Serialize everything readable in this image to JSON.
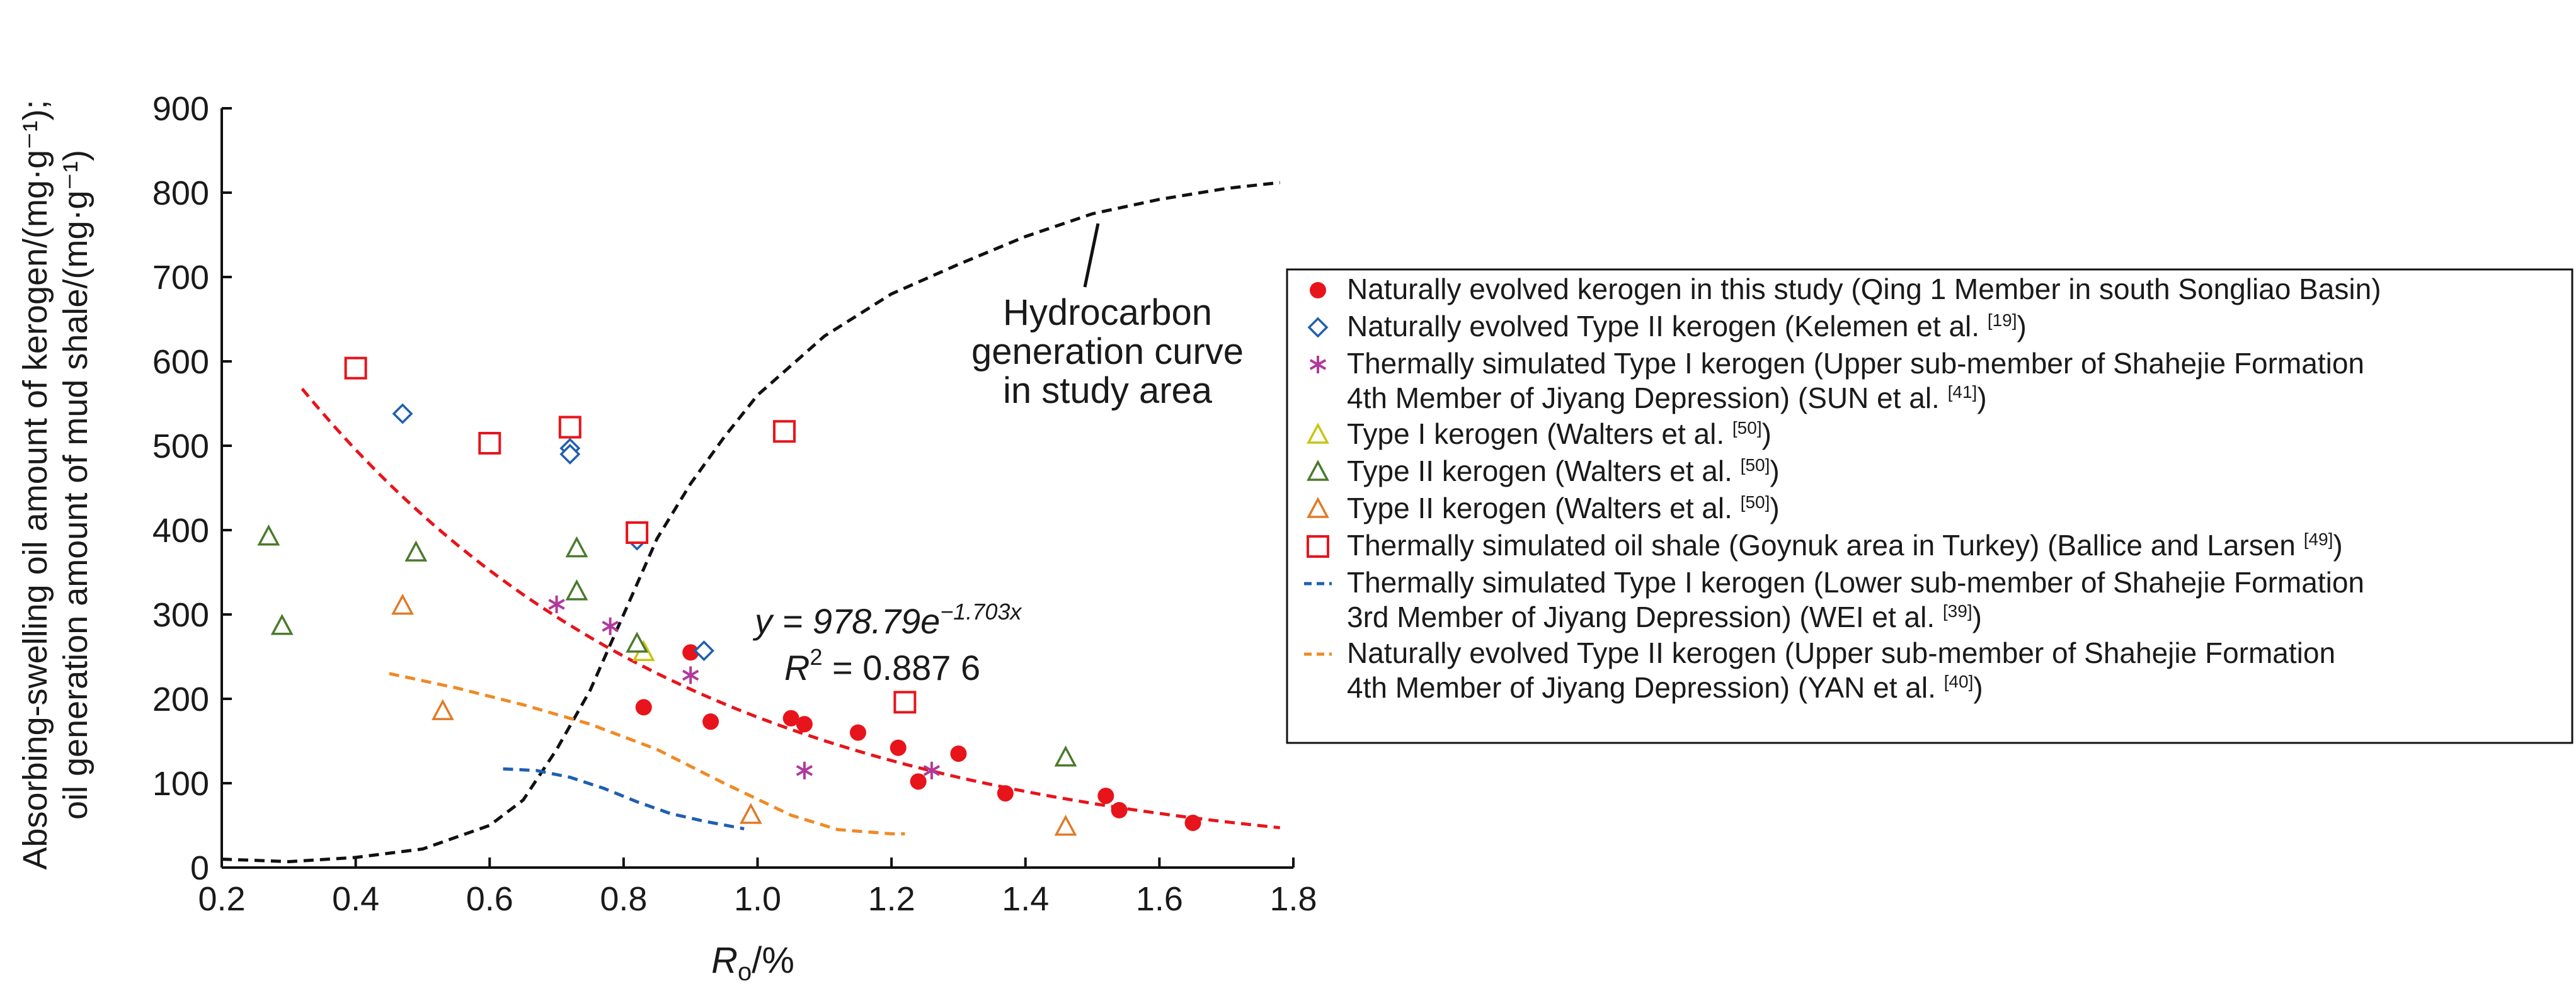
{
  "chart_data": {
    "type": "scatter",
    "xlabel": {
      "main": "R",
      "sub": "o",
      "unit": "/%"
    },
    "ylabel": {
      "line1": "Absorbing-swelling oil amount of kerogen/(mg·g⁻¹);",
      "line2": "oil generation amount of mud shale/(mg·g⁻¹)"
    },
    "xlim": [
      0.2,
      1.8
    ],
    "ylim": [
      0,
      900
    ],
    "xticks": [
      0.2,
      0.4,
      0.6,
      0.8,
      1.0,
      1.2,
      1.4,
      1.6,
      1.8
    ],
    "xtick_labels": [
      "0.2",
      "0.4",
      "0.6",
      "0.8",
      "1.0",
      "1.2",
      "1.4",
      "1.6",
      "1.8"
    ],
    "yticks": [
      0,
      100,
      200,
      300,
      400,
      500,
      600,
      700,
      800,
      900
    ],
    "ytick_labels": [
      "0",
      "100",
      "200",
      "300",
      "400",
      "500",
      "600",
      "700",
      "800",
      "900"
    ],
    "grid": false,
    "legend_position": "right",
    "annotations": {
      "curve_label": [
        "Hydrocarbon",
        "generation curve",
        "in study area"
      ],
      "equation": {
        "y_part": "y = 978.79e",
        "exponent": "−1.703x",
        "r2_part": "R",
        "r2_sup": "2",
        "r2_value": " = 0.887 6"
      }
    },
    "series": [
      {
        "name": "Naturally evolved kerogen in this study (Qing 1 Member in south Songliao Basin)",
        "marker": "filled-circle",
        "color": "#e8141b",
        "points": [
          [
            0.83,
            190
          ],
          [
            0.9,
            255
          ],
          [
            0.93,
            173
          ],
          [
            1.05,
            177
          ],
          [
            1.07,
            170
          ],
          [
            1.15,
            160
          ],
          [
            1.21,
            142
          ],
          [
            1.24,
            102
          ],
          [
            1.3,
            135
          ],
          [
            1.37,
            88
          ],
          [
            1.52,
            85
          ],
          [
            1.54,
            68
          ],
          [
            1.65,
            53
          ]
        ]
      },
      {
        "name": "Naturally evolved Type II kerogen (Kelemen et al. [19])",
        "legend_text": "Naturally evolved Type II kerogen (Kelemen et al. ",
        "legend_ref": "[19]",
        "legend_tail": ")",
        "marker": "diamond",
        "color": "#1f5fb0",
        "points": [
          [
            0.47,
            538
          ],
          [
            0.72,
            497
          ],
          [
            0.72,
            490
          ],
          [
            0.82,
            388
          ],
          [
            0.92,
            257
          ]
        ]
      },
      {
        "name": "Thermally simulated Type I kerogen (Upper sub-member of Shahejie Formation 4th Member of Jiyang Depression) (SUN et al. [41])",
        "legend_lines": [
          "Thermally simulated Type I kerogen (Upper sub-member of Shahejie Formation",
          "4th Member of Jiyang Depression) (SUN et al. "
        ],
        "legend_ref": "[41]",
        "legend_tail": ")",
        "marker": "asterisk",
        "color": "#b0399b",
        "points": [
          [
            0.7,
            312
          ],
          [
            0.78,
            286
          ],
          [
            0.9,
            228
          ],
          [
            1.07,
            115
          ],
          [
            1.26,
            115
          ]
        ]
      },
      {
        "name": "Type I kerogen (Walters et al. [50])",
        "legend_text": "Type I kerogen (Walters et al. ",
        "legend_ref": "[50]",
        "legend_tail": ")",
        "marker": "triangle",
        "color": "#c9c414",
        "points": [
          [
            0.83,
            255
          ]
        ]
      },
      {
        "name": "Type II kerogen (Walters et al. [50])",
        "legend_text": "Type II kerogen (Walters et al. ",
        "legend_ref": "[50]",
        "legend_tail": ")",
        "marker": "triangle",
        "color": "#4a7a2c",
        "points": [
          [
            0.27,
            392
          ],
          [
            0.29,
            286
          ],
          [
            0.49,
            373
          ],
          [
            0.73,
            378
          ],
          [
            0.73,
            327
          ],
          [
            0.82,
            265
          ],
          [
            1.46,
            130
          ]
        ]
      },
      {
        "name": "Type II kerogen (Walters et al. [50])",
        "legend_text": "Type II kerogen (Walters et al. ",
        "legend_ref": "[50]",
        "legend_tail": ")",
        "marker": "triangle",
        "color": "#e07a28",
        "points": [
          [
            0.47,
            310
          ],
          [
            0.53,
            185
          ],
          [
            0.99,
            62
          ],
          [
            1.46,
            48
          ]
        ]
      },
      {
        "name": "Thermally simulated oil shale (Goynuk area in Turkey) (Ballice and Larsen [49])",
        "legend_text": "Thermally simulated oil shale (Goynuk area in Turkey) (Ballice and Larsen ",
        "legend_ref": "[49]",
        "legend_tail": ")",
        "marker": "square",
        "color": "#e8141b",
        "points": [
          [
            0.4,
            592
          ],
          [
            0.6,
            503
          ],
          [
            0.72,
            522
          ],
          [
            0.82,
            397
          ],
          [
            1.04,
            517
          ],
          [
            1.22,
            196
          ]
        ]
      },
      {
        "name": "Thermally simulated Type I kerogen (Lower sub-member of Shahejie Formation 3rd Member of Jiyang Depression) (WEI et al. [39])",
        "legend_lines": [
          "Thermally simulated Type I kerogen (Lower sub-member of Shahejie Formation",
          "3rd Member of Jiyang Depression) (WEI et al. "
        ],
        "legend_ref": "[39]",
        "legend_tail": ")",
        "marker": "dashed-line",
        "color": "#1f5fb0",
        "points": [
          [
            0.62,
            117
          ],
          [
            0.67,
            115
          ],
          [
            0.72,
            107
          ],
          [
            0.77,
            94
          ],
          [
            0.82,
            78
          ],
          [
            0.87,
            64
          ],
          [
            0.92,
            55
          ],
          [
            0.98,
            46
          ]
        ]
      },
      {
        "name": "Naturally evolved Type II kerogen (Upper sub-member of Shahejie Formation 4th Member of Jiyang Depression) (YAN et al. [40])",
        "legend_lines": [
          "Naturally evolved Type II kerogen (Upper sub-member of Shahejie Formation",
          "4th Member of Jiyang Depression) (YAN et al. "
        ],
        "legend_ref": "[40]",
        "legend_tail": ")",
        "marker": "dashed-line",
        "color": "#f08a24",
        "points": [
          [
            0.45,
            230
          ],
          [
            0.55,
            213
          ],
          [
            0.65,
            193
          ],
          [
            0.75,
            170
          ],
          [
            0.85,
            140
          ],
          [
            0.95,
            100
          ],
          [
            1.05,
            62
          ],
          [
            1.12,
            45
          ],
          [
            1.2,
            40
          ],
          [
            1.22,
            40
          ]
        ]
      }
    ],
    "curves": [
      {
        "kind": "exponential-fit",
        "color": "#e8141b",
        "a": 978.79,
        "b": -1.703,
        "x_range": [
          0.32,
          1.78
        ]
      },
      {
        "kind": "hydrocarbon-generation",
        "color": "#111111",
        "points": [
          [
            0.2,
            10
          ],
          [
            0.3,
            7
          ],
          [
            0.4,
            12
          ],
          [
            0.5,
            22
          ],
          [
            0.6,
            50
          ],
          [
            0.65,
            80
          ],
          [
            0.7,
            140
          ],
          [
            0.75,
            210
          ],
          [
            0.8,
            300
          ],
          [
            0.85,
            390
          ],
          [
            0.9,
            455
          ],
          [
            0.95,
            510
          ],
          [
            1.0,
            560
          ],
          [
            1.1,
            630
          ],
          [
            1.2,
            680
          ],
          [
            1.3,
            715
          ],
          [
            1.4,
            748
          ],
          [
            1.5,
            775
          ],
          [
            1.6,
            792
          ],
          [
            1.7,
            805
          ],
          [
            1.78,
            812
          ]
        ]
      }
    ]
  }
}
